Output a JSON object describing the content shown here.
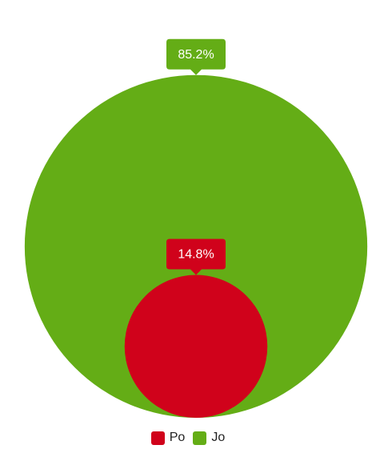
{
  "chart_data": {
    "type": "bubble",
    "series": [
      {
        "name": "Jo",
        "value": 85.2,
        "label": "85.2%",
        "color": "#64ad16"
      },
      {
        "name": "Po",
        "value": 14.8,
        "label": "14.8%",
        "color": "#d0021b"
      }
    ]
  },
  "legend": {
    "items": [
      {
        "label": "Po",
        "color": "#d0021b"
      },
      {
        "label": "Jo",
        "color": "#64ad16"
      }
    ]
  }
}
